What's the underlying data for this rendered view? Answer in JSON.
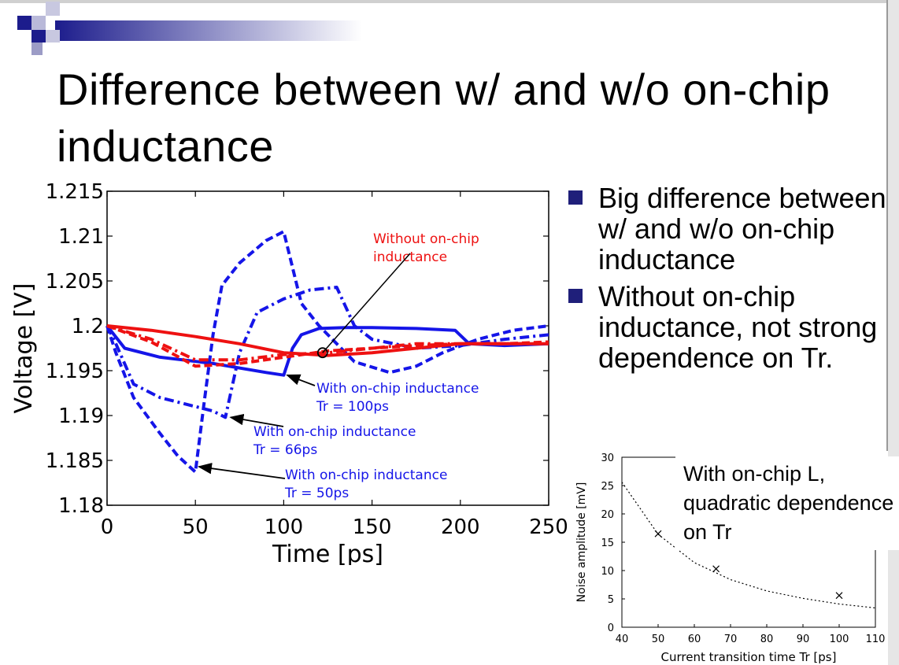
{
  "slide": {
    "title": "Difference between w/ and w/o on-chip inductance",
    "bullets": [
      "Big difference between w/ and w/o on-chip inductance",
      "Without on-chip inductance, not strong dependence on Tr."
    ],
    "note": "With on-chip L, quadratic dependence on Tr"
  },
  "colors": {
    "accent": "#1f1f7a",
    "blue_series": "#1515e8",
    "red_series": "#ee1111"
  },
  "chart_data": [
    {
      "type": "line",
      "xlabel": "Time [ps]",
      "ylabel": "Voltage [V]",
      "xlim": [
        0,
        250
      ],
      "ylim": [
        1.18,
        1.215
      ],
      "xticks": [
        "0",
        "50",
        "100",
        "150",
        "200",
        "250"
      ],
      "yticks": [
        "1.18",
        "1.185",
        "1.19",
        "1.195",
        "1.2",
        "1.205",
        "1.21",
        "1.215"
      ],
      "series": [
        {
          "style": "dashed",
          "color": "blue",
          "x": [
            0,
            5,
            15,
            30,
            40,
            50,
            55,
            60,
            65,
            75,
            90,
            100,
            110,
            120,
            140,
            160,
            175,
            190,
            210,
            230,
            250
          ],
          "y": [
            1.2,
            1.197,
            1.192,
            1.188,
            1.1855,
            1.1837,
            1.1915,
            1.199,
            1.2045,
            1.207,
            1.2095,
            1.2105,
            1.2025,
            1.2,
            1.196,
            1.1948,
            1.1955,
            1.197,
            1.1985,
            1.1995,
            1.2
          ]
        },
        {
          "style": "dash-dot",
          "color": "blue",
          "x": [
            0,
            5,
            15,
            30,
            50,
            60,
            67,
            75,
            85,
            100,
            115,
            130,
            140,
            150,
            175,
            200,
            225,
            250
          ],
          "y": [
            1.2,
            1.198,
            1.1935,
            1.192,
            1.191,
            1.1905,
            1.1898,
            1.197,
            1.2015,
            1.203,
            1.204,
            1.2043,
            1.2,
            1.1985,
            1.1975,
            1.1978,
            1.1985,
            1.199
          ]
        },
        {
          "style": "solid",
          "color": "blue",
          "x": [
            0,
            10,
            30,
            60,
            90,
            100,
            105,
            110,
            120,
            135,
            150,
            175,
            197,
            205,
            225,
            250
          ],
          "y": [
            1.2,
            1.1975,
            1.1965,
            1.1958,
            1.1948,
            1.1945,
            1.1975,
            1.199,
            1.1997,
            1.1998,
            1.1998,
            1.1997,
            1.1995,
            1.198,
            1.1978,
            1.198
          ]
        },
        {
          "style": "dashed",
          "color": "red",
          "x": [
            0,
            25,
            50,
            75,
            100,
            125,
            150,
            175,
            200,
            225,
            250
          ],
          "y": [
            1.2,
            1.1982,
            1.1955,
            1.1958,
            1.1965,
            1.1972,
            1.1975,
            1.1978,
            1.198,
            1.198,
            1.1982
          ]
        },
        {
          "style": "dash-dot",
          "color": "red",
          "x": [
            0,
            25,
            50,
            75,
            100,
            125,
            150,
            175,
            200,
            225,
            250
          ],
          "y": [
            1.2,
            1.1985,
            1.1962,
            1.1962,
            1.1968,
            1.197,
            1.1975,
            1.198,
            1.198,
            1.198,
            1.198
          ]
        },
        {
          "style": "solid",
          "color": "red",
          "x": [
            0,
            25,
            50,
            75,
            100,
            125,
            150,
            175,
            200,
            225,
            250
          ],
          "y": [
            1.2,
            1.1995,
            1.1988,
            1.198,
            1.197,
            1.1967,
            1.197,
            1.1975,
            1.198,
            1.198,
            1.198
          ]
        }
      ],
      "annotations": [
        {
          "text": [
            "Without on-chip",
            " inductance"
          ],
          "color": "red",
          "points_to": [
            122,
            1.197
          ]
        },
        {
          "text": [
            "With on-chip inductance",
            "Tr = 100ps"
          ],
          "color": "blue",
          "points_to": [
            102,
            1.1945
          ]
        },
        {
          "text": [
            "With on-chip inductance",
            "Tr = 66ps"
          ],
          "color": "blue",
          "points_to": [
            70,
            1.1898
          ]
        },
        {
          "text": [
            "With on-chip inductance",
            "Tr = 50ps"
          ],
          "color": "blue",
          "points_to": [
            52,
            1.1843
          ]
        }
      ]
    },
    {
      "type": "scatter",
      "xlabel": "Current transition time Tr [ps]",
      "ylabel": "Noise amplitude [mV]",
      "xlim": [
        40,
        110
      ],
      "ylim": [
        0,
        30
      ],
      "xticks": [
        "40",
        "50",
        "60",
        "70",
        "80",
        "90",
        "100",
        "110"
      ],
      "yticks": [
        "0",
        "5",
        "10",
        "15",
        "20",
        "25",
        "30"
      ],
      "points": {
        "x": [
          50,
          66,
          100
        ],
        "y": [
          16.5,
          10.3,
          5.6
        ]
      },
      "fit": {
        "style": "dotted",
        "x": [
          40,
          50,
          60,
          70,
          80,
          90,
          100,
          110
        ],
        "y": [
          25.6,
          16.4,
          11.4,
          8.4,
          6.4,
          5.1,
          4.1,
          3.4
        ]
      }
    }
  ]
}
